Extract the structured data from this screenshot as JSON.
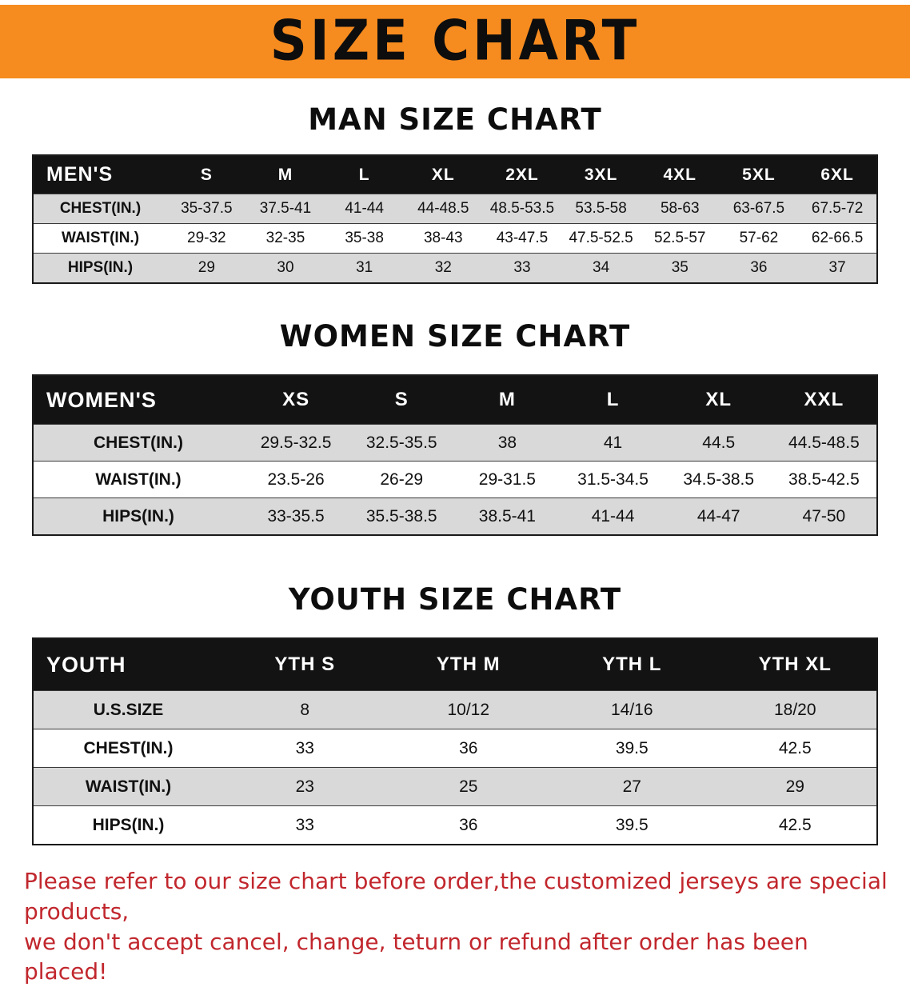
{
  "banner": {
    "title": "SIZE CHART",
    "bg_color": "#f68b1f"
  },
  "sections": [
    {
      "heading": "MAN SIZE CHART",
      "table": {
        "header": [
          "MEN'S",
          "S",
          "M",
          "L",
          "XL",
          "2XL",
          "3XL",
          "4XL",
          "5XL",
          "6XL"
        ],
        "rows": [
          [
            "CHEST(IN.)",
            "35-37.5",
            "37.5-41",
            "41-44",
            "44-48.5",
            "48.5-53.5",
            "53.5-58",
            "58-63",
            "63-67.5",
            "67.5-72"
          ],
          [
            "WAIST(IN.)",
            "29-32",
            "32-35",
            "35-38",
            "38-43",
            "43-47.5",
            "47.5-52.5",
            "52.5-57",
            "57-62",
            "62-66.5"
          ],
          [
            "HIPS(IN.)",
            "29",
            "30",
            "31",
            "32",
            "33",
            "34",
            "35",
            "36",
            "37"
          ]
        ]
      }
    },
    {
      "heading": "WOMEN SIZE CHART",
      "table": {
        "header": [
          "WOMEN'S",
          "XS",
          "S",
          "M",
          "L",
          "XL",
          "XXL"
        ],
        "rows": [
          [
            "CHEST(IN.)",
            "29.5-32.5",
            "32.5-35.5",
            "38",
            "41",
            "44.5",
            "44.5-48.5"
          ],
          [
            "WAIST(IN.)",
            "23.5-26",
            "26-29",
            "29-31.5",
            "31.5-34.5",
            "34.5-38.5",
            "38.5-42.5"
          ],
          [
            "HIPS(IN.)",
            "33-35.5",
            "35.5-38.5",
            "38.5-41",
            "41-44",
            "44-47",
            "47-50"
          ]
        ]
      }
    },
    {
      "heading": "YOUTH SIZE CHART",
      "table": {
        "header": [
          "YOUTH",
          "YTH S",
          "YTH M",
          "YTH L",
          "YTH XL"
        ],
        "rows": [
          [
            "U.S.SIZE",
            "8",
            "10/12",
            "14/16",
            "18/20"
          ],
          [
            "CHEST(IN.)",
            "33",
            "36",
            "39.5",
            "42.5"
          ],
          [
            "WAIST(IN.)",
            "23",
            "25",
            "27",
            "29"
          ],
          [
            "HIPS(IN.)",
            "33",
            "36",
            "39.5",
            "42.5"
          ]
        ]
      }
    }
  ],
  "footer": {
    "line1": "Please refer to our size chart before order,the customized jerseys are special products,",
    "line2": "we don't accept cancel, change, teturn or refund after order has been placed!",
    "text_color": "#c1272d"
  }
}
